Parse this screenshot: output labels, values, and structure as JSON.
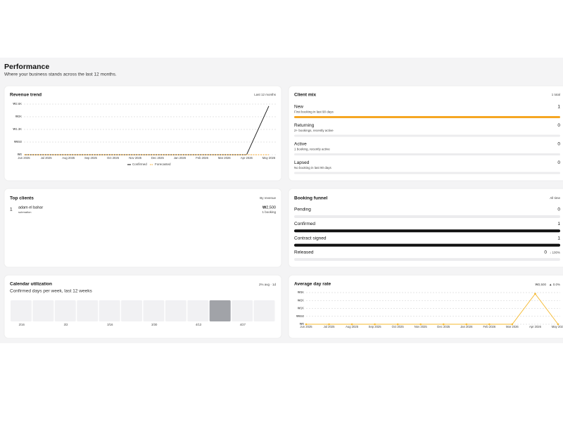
{
  "header": {
    "title": "Performance",
    "subtitle": "Where your business stands across the last 12 months."
  },
  "chart_data": [
    {
      "type": "line",
      "title": "Revenue trend",
      "period": "Last 12 months",
      "categories": [
        "Jun 2025",
        "Jul 2025",
        "Aug 2025",
        "Sep 2025",
        "Oct 2025",
        "Nov 2025",
        "Dec 2025",
        "Jan 2026",
        "Feb 2026",
        "Mar 2026",
        "Apr 2026",
        "May 2026"
      ],
      "series": [
        {
          "name": "Confirmed",
          "color": "#111111",
          "values": [
            0,
            0,
            0,
            0,
            0,
            0,
            0,
            0,
            0,
            0,
            0,
            2500
          ]
        },
        {
          "name": "Forecasted",
          "color": "#f5a623",
          "dashed": true,
          "values": [
            0,
            0,
            0,
            0,
            0,
            0,
            0,
            0,
            0,
            0,
            0,
            0
          ]
        }
      ],
      "ylim": [
        0,
        2600
      ],
      "yticks": [
        {
          "value": 0,
          "label": "₩0"
        },
        {
          "value": 650,
          "label": "₩650"
        },
        {
          "value": 1300,
          "label": "₩1.3K"
        },
        {
          "value": 1950,
          "label": "₩2K"
        },
        {
          "value": 2600,
          "label": "₩2.6K"
        }
      ],
      "grid": true,
      "legend": "bottom"
    },
    {
      "type": "line",
      "title": "Average day rate",
      "summary": "₩2,500",
      "change": "▲ 0.0%",
      "categories": [
        "Jun 2025",
        "Jul 2025",
        "Aug 2025",
        "Sep 2025",
        "Oct 2025",
        "Nov 2025",
        "Dec 2025",
        "Jan 2026",
        "Feb 2026",
        "Mar 2026",
        "Apr 2026",
        "May 2026"
      ],
      "series": [
        {
          "color": "#f5b82e",
          "markers": true,
          "values": [
            0,
            0,
            0,
            0,
            0,
            0,
            0,
            0,
            0,
            0,
            2500,
            0
          ]
        }
      ],
      "ylim": [
        0,
        2600
      ],
      "yticks": [
        {
          "value": 0,
          "label": "₩0"
        },
        {
          "value": 650,
          "label": "₩650"
        },
        {
          "value": 1300,
          "label": "₩1K"
        },
        {
          "value": 1950,
          "label": "₩2K"
        },
        {
          "value": 2600,
          "label": "₩3K"
        }
      ],
      "grid": true
    }
  ],
  "client_mix": {
    "title": "Client mix",
    "total": "1 total",
    "color": "#f5a623",
    "segments": [
      {
        "name": "New",
        "description": "First booking in last 90 days",
        "value": 1
      },
      {
        "name": "Returning",
        "description": "2+ bookings, recently active",
        "value": 0
      },
      {
        "name": "Active",
        "description": "1 booking, recently active",
        "value": 0
      },
      {
        "name": "Lapsed",
        "description": "No booking in last 90 days",
        "value": 0
      }
    ]
  },
  "top_clients": {
    "title": "Top clients",
    "sort": "By revenue",
    "rows": [
      {
        "rank": "1",
        "name": "adam el bahar",
        "detail": "submation",
        "amount": "₩2,500",
        "bookings": "1 booking"
      }
    ]
  },
  "booking_funnel": {
    "title": "Booking funnel",
    "period": "All time",
    "color": "#111111",
    "stages": [
      {
        "name": "Pending",
        "value": 0
      },
      {
        "name": "Confirmed",
        "value": 1
      },
      {
        "name": "Contract signed",
        "value": 1
      },
      {
        "name": "Released",
        "value": 0,
        "drop": "↓ 100%"
      }
    ]
  },
  "calendar": {
    "title": "Calendar utilization",
    "summary": "2% avg · 1d",
    "subtitle": "Confirmed days per week, last 12 weeks",
    "color": "#a1a3a8",
    "weeks": [
      "2/16",
      null,
      "3/2",
      null,
      "3/16",
      null,
      "3/30",
      null,
      "4/13",
      null,
      "4/27",
      null
    ],
    "values": [
      0,
      0,
      0,
      0,
      0,
      0,
      0,
      0,
      0,
      1,
      0,
      0
    ]
  }
}
